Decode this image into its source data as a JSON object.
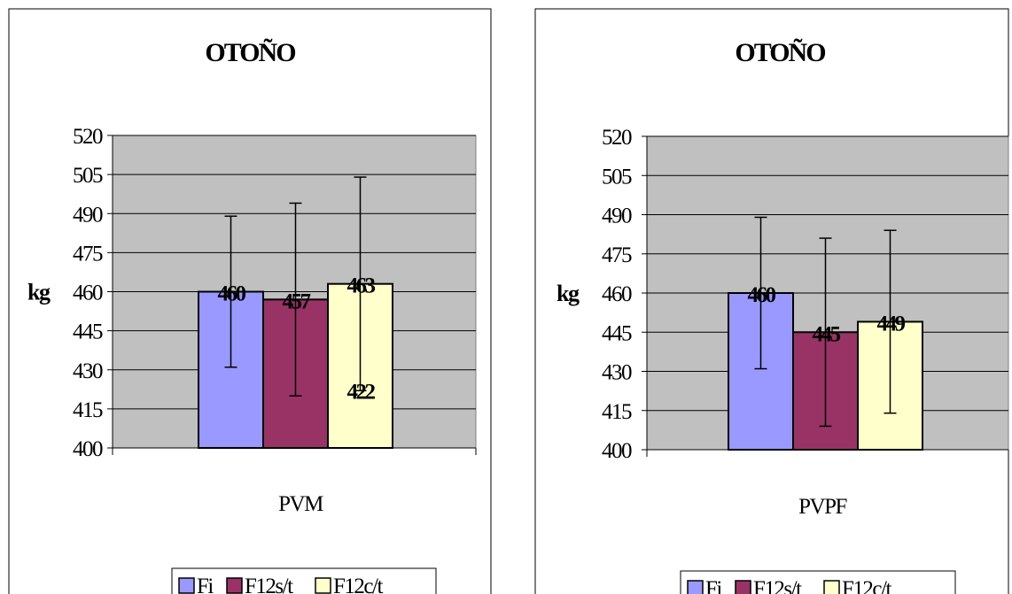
{
  "chart_data": [
    {
      "type": "bar",
      "title": "OTOÑO",
      "ylabel": "kg",
      "xlabel": "",
      "categories": [
        "PVM"
      ],
      "ylim": [
        400,
        520
      ],
      "yticks": [
        400,
        415,
        430,
        445,
        460,
        475,
        490,
        505,
        520
      ],
      "grid": true,
      "legend_position": "bottom",
      "series": [
        {
          "name": "Fi",
          "values": [
            460
          ],
          "error_low": [
            431
          ],
          "error_high": [
            489
          ],
          "label": "460",
          "color": "#9999ff"
        },
        {
          "name": "F12s/t",
          "values": [
            457
          ],
          "error_low": [
            420
          ],
          "error_high": [
            494
          ],
          "label": "457",
          "color": "#993366"
        },
        {
          "name": "F12c/t",
          "values": [
            463
          ],
          "error_low": [
            422
          ],
          "error_high": [
            504
          ],
          "label": "463",
          "color": "#ffffcc"
        }
      ],
      "extra_labels": [
        {
          "text": "422",
          "value": 422,
          "series_index": 2
        }
      ]
    },
    {
      "type": "bar",
      "title": "OTOÑO",
      "ylabel": "kg",
      "xlabel": "",
      "categories": [
        "PVPF"
      ],
      "ylim": [
        400,
        520
      ],
      "yticks": [
        400,
        415,
        430,
        445,
        460,
        475,
        490,
        505,
        520
      ],
      "grid": true,
      "legend_position": "bottom",
      "series": [
        {
          "name": "Fi",
          "values": [
            460
          ],
          "error_low": [
            431
          ],
          "error_high": [
            489
          ],
          "label": "460",
          "color": "#9999ff"
        },
        {
          "name": "F12s/t",
          "values": [
            445
          ],
          "error_low": [
            409
          ],
          "error_high": [
            481
          ],
          "label": "445",
          "color": "#993366"
        },
        {
          "name": "F12c/t",
          "values": [
            449
          ],
          "error_low": [
            414
          ],
          "error_high": [
            484
          ],
          "label": "449",
          "color": "#ffffcc"
        }
      ],
      "extra_labels": []
    }
  ],
  "colors": {
    "plot_background": "#c0c0c0",
    "frame": "#000000",
    "page_background": "#ffffff"
  }
}
